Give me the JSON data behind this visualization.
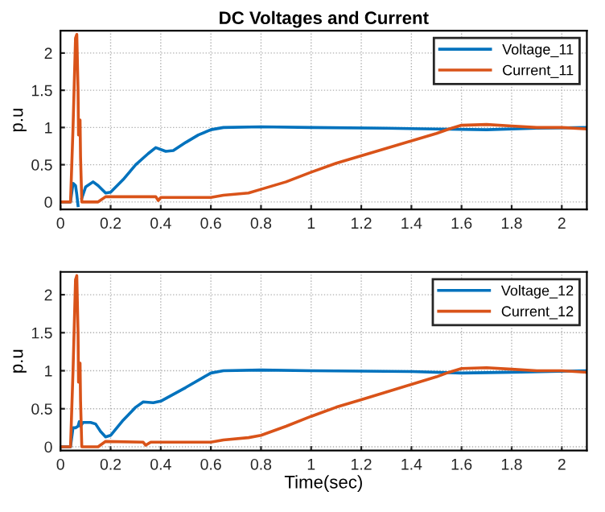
{
  "chart_data": [
    {
      "type": "line",
      "title": "DC Voltages and Current",
      "ylabel": "p.u",
      "xlim": [
        0,
        2.1
      ],
      "ylim": [
        -0.1,
        2.3
      ],
      "xticks": [
        0,
        0.2,
        0.4,
        0.6,
        0.8,
        1,
        1.2,
        1.4,
        1.6,
        1.8,
        2
      ],
      "yticks": [
        0,
        0.5,
        1,
        1.5,
        2
      ],
      "grid": true,
      "legend": "top right",
      "line_style": "solid",
      "series": [
        {
          "name": "Voltage_11",
          "color": "#0072bd",
          "x": [
            0,
            0.04,
            0.05,
            0.06,
            0.065,
            0.07,
            0.075,
            0.08,
            0.085,
            0.1,
            0.13,
            0.15,
            0.18,
            0.2,
            0.25,
            0.3,
            0.35,
            0.38,
            0.42,
            0.45,
            0.5,
            0.55,
            0.6,
            0.65,
            0.8,
            1.0,
            1.3,
            1.5,
            1.7,
            1.9,
            2.1
          ],
          "values": [
            0,
            0,
            0.25,
            0.22,
            0.1,
            -0.05,
            null,
            null,
            0.05,
            0.2,
            0.27,
            0.22,
            0.12,
            0.13,
            0.3,
            0.5,
            0.65,
            0.73,
            0.68,
            0.69,
            0.8,
            0.9,
            0.97,
            1.0,
            1.01,
            1.0,
            0.99,
            0.98,
            0.97,
            0.99,
            1.0
          ]
        },
        {
          "name": "Current_11",
          "color": "#d95319",
          "x": [
            0,
            0.04,
            0.045,
            0.05,
            0.055,
            0.06,
            0.065,
            0.07,
            0.072,
            0.075,
            0.078,
            0.08,
            0.085,
            0.15,
            0.18,
            0.38,
            0.39,
            0.4,
            0.6,
            0.65,
            0.75,
            0.8,
            0.9,
            1.0,
            1.1,
            1.2,
            1.3,
            1.4,
            1.5,
            1.55,
            1.6,
            1.7,
            1.8,
            1.9,
            2.0,
            2.1
          ],
          "values": [
            0,
            0,
            0.5,
            1.0,
            1.6,
            2.2,
            2.25,
            1.5,
            0.9,
            1.1,
            1.1,
            0.6,
            0,
            0,
            0.07,
            0.07,
            0.02,
            0.06,
            0.06,
            0.09,
            0.12,
            0.17,
            0.27,
            0.4,
            0.52,
            0.62,
            0.72,
            0.82,
            0.92,
            0.98,
            1.03,
            1.04,
            1.02,
            1.0,
            1.0,
            0.98
          ]
        }
      ]
    },
    {
      "type": "line",
      "xlabel": "Time(sec)",
      "ylabel": "p.u",
      "xlim": [
        0,
        2.1
      ],
      "ylim": [
        -0.05,
        2.3
      ],
      "xticks": [
        0,
        0.2,
        0.4,
        0.6,
        0.8,
        1,
        1.2,
        1.4,
        1.6,
        1.8,
        2
      ],
      "yticks": [
        0,
        0.5,
        1,
        1.5,
        2
      ],
      "grid": true,
      "legend": "top right",
      "line_style": "solid",
      "series": [
        {
          "name": "Voltage_12",
          "color": "#0072bd",
          "x": [
            0,
            0.04,
            0.05,
            0.06,
            0.07,
            0.075,
            0.08,
            0.09,
            0.12,
            0.14,
            0.16,
            0.18,
            0.2,
            0.25,
            0.3,
            0.33,
            0.37,
            0.4,
            0.5,
            0.6,
            0.65,
            0.8,
            1.0,
            1.4,
            1.6,
            1.8,
            2.1
          ],
          "values": [
            0,
            0,
            0.25,
            0.25,
            0.27,
            0.33,
            0.27,
            0.32,
            0.32,
            0.3,
            0.2,
            0.13,
            0.15,
            0.35,
            0.52,
            0.59,
            0.58,
            0.6,
            0.78,
            0.97,
            1.0,
            1.01,
            1.0,
            0.99,
            0.97,
            0.98,
            1.0
          ]
        },
        {
          "name": "Current_12",
          "color": "#d95319",
          "x": [
            0,
            0.04,
            0.045,
            0.05,
            0.055,
            0.06,
            0.065,
            0.07,
            0.072,
            0.075,
            0.078,
            0.08,
            0.085,
            0.15,
            0.18,
            0.33,
            0.34,
            0.36,
            0.6,
            0.65,
            0.75,
            0.8,
            0.9,
            1.0,
            1.1,
            1.2,
            1.3,
            1.4,
            1.5,
            1.55,
            1.6,
            1.7,
            1.8,
            1.9,
            2.0,
            2.1
          ],
          "values": [
            0,
            0,
            0.5,
            1.0,
            1.6,
            2.2,
            2.25,
            1.5,
            0.85,
            1.1,
            1.1,
            0.6,
            0,
            0,
            0.07,
            0.06,
            0.02,
            0.06,
            0.06,
            0.09,
            0.12,
            0.15,
            0.27,
            0.4,
            0.52,
            0.62,
            0.72,
            0.82,
            0.92,
            0.98,
            1.03,
            1.04,
            1.02,
            1.0,
            1.0,
            0.98
          ]
        }
      ]
    }
  ]
}
